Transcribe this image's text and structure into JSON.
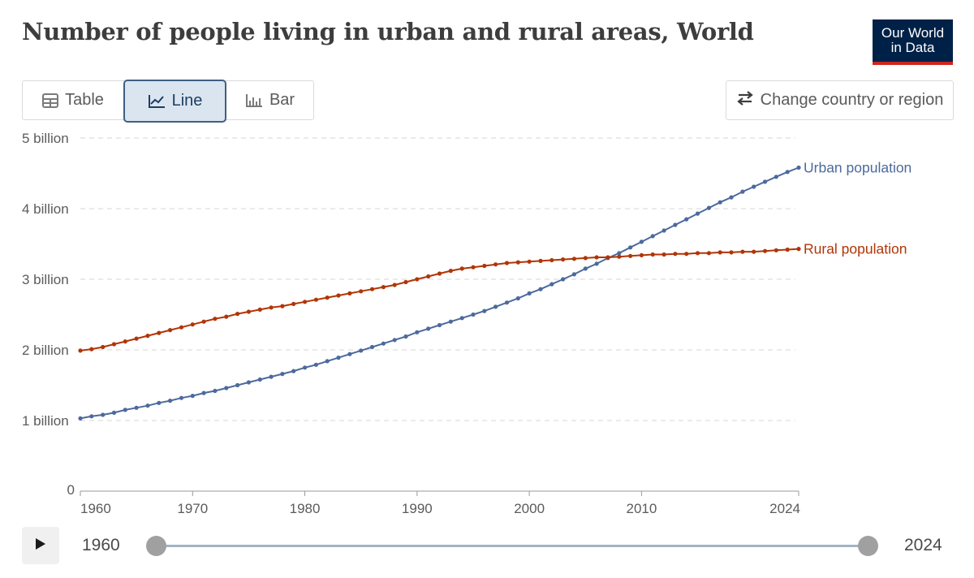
{
  "header": {
    "title": "Number of people living in urban and rural areas, World",
    "logo_line1": "Our World",
    "logo_line2": "in Data"
  },
  "tabs": [
    {
      "label": "Table",
      "icon": "table-icon",
      "active": false
    },
    {
      "label": "Line",
      "icon": "line-chart-icon",
      "active": true
    },
    {
      "label": "Bar",
      "icon": "bar-chart-icon",
      "active": false
    }
  ],
  "change_button": {
    "label": "Change country or region",
    "icon": "swap-arrows-icon"
  },
  "timeline": {
    "start_label": "1960",
    "end_label": "2024",
    "start_value": 1960,
    "end_value": 2024
  },
  "colors": {
    "urban": "#4c6a9c",
    "rural": "#b13507",
    "grid": "#d5d5d5",
    "accent": "#3f5f83"
  },
  "chart_data": {
    "type": "line",
    "title": "Number of people living in urban and rural areas, World",
    "x": [
      1960,
      1961,
      1962,
      1963,
      1964,
      1965,
      1966,
      1967,
      1968,
      1969,
      1970,
      1971,
      1972,
      1973,
      1974,
      1975,
      1976,
      1977,
      1978,
      1979,
      1980,
      1981,
      1982,
      1983,
      1984,
      1985,
      1986,
      1987,
      1988,
      1989,
      1990,
      1991,
      1992,
      1993,
      1994,
      1995,
      1996,
      1997,
      1998,
      1999,
      2000,
      2001,
      2002,
      2003,
      2004,
      2005,
      2006,
      2007,
      2008,
      2009,
      2010,
      2011,
      2012,
      2013,
      2014,
      2015,
      2016,
      2017,
      2018,
      2019,
      2020,
      2021,
      2022,
      2023,
      2024
    ],
    "series": [
      {
        "name": "Urban population",
        "values": [
          1.03,
          1.06,
          1.08,
          1.11,
          1.15,
          1.18,
          1.21,
          1.25,
          1.28,
          1.32,
          1.35,
          1.39,
          1.42,
          1.46,
          1.5,
          1.54,
          1.58,
          1.62,
          1.66,
          1.7,
          1.75,
          1.79,
          1.84,
          1.89,
          1.94,
          1.99,
          2.04,
          2.09,
          2.14,
          2.19,
          2.25,
          2.3,
          2.35,
          2.4,
          2.45,
          2.5,
          2.55,
          2.61,
          2.67,
          2.73,
          2.8,
          2.86,
          2.93,
          3.0,
          3.07,
          3.15,
          3.22,
          3.3,
          3.37,
          3.45,
          3.53,
          3.61,
          3.69,
          3.77,
          3.85,
          3.93,
          4.01,
          4.09,
          4.16,
          4.24,
          4.31,
          4.38,
          4.45,
          4.52,
          4.58
        ]
      },
      {
        "name": "Rural population",
        "values": [
          1.99,
          2.01,
          2.04,
          2.08,
          2.12,
          2.16,
          2.2,
          2.24,
          2.28,
          2.32,
          2.36,
          2.4,
          2.44,
          2.47,
          2.51,
          2.54,
          2.57,
          2.6,
          2.62,
          2.65,
          2.68,
          2.71,
          2.74,
          2.77,
          2.8,
          2.83,
          2.86,
          2.89,
          2.92,
          2.96,
          3.0,
          3.04,
          3.08,
          3.12,
          3.15,
          3.17,
          3.19,
          3.21,
          3.23,
          3.24,
          3.25,
          3.26,
          3.27,
          3.28,
          3.29,
          3.3,
          3.31,
          3.31,
          3.32,
          3.33,
          3.34,
          3.35,
          3.35,
          3.36,
          3.36,
          3.37,
          3.37,
          3.38,
          3.38,
          3.39,
          3.39,
          3.4,
          3.41,
          3.42,
          3.43
        ]
      }
    ],
    "y_ticks": [
      {
        "value": 0,
        "label": "0"
      },
      {
        "value": 1,
        "label": "1 billion"
      },
      {
        "value": 2,
        "label": "2 billion"
      },
      {
        "value": 3,
        "label": "3 billion"
      },
      {
        "value": 4,
        "label": "4 billion"
      },
      {
        "value": 5,
        "label": "5 billion"
      }
    ],
    "x_ticks": [
      1960,
      1970,
      1980,
      1990,
      2000,
      2010,
      2024
    ],
    "xlim": [
      1960,
      2024
    ],
    "ylim": [
      0,
      5
    ],
    "units": "billion",
    "grid": "horizontal dashed",
    "legend": "inline labels at line ends"
  }
}
